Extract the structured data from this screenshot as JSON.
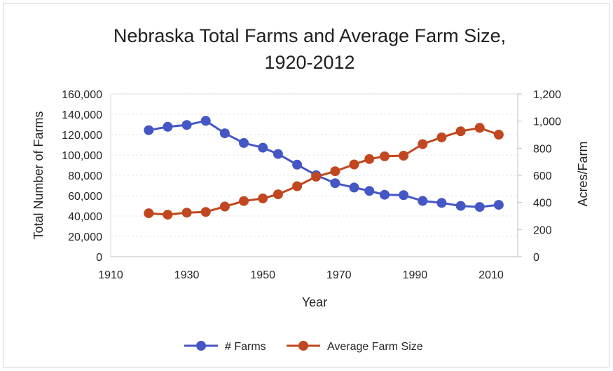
{
  "chart_data": {
    "type": "line",
    "title_line1": "Nebraska Total Farms and Average Farm Size,",
    "title_line2": "1920-2012",
    "xlabel": "Year",
    "ylabel_left": "Total Number of Farms",
    "ylabel_right": "Acres/Farm",
    "xlim": [
      1910,
      2017
    ],
    "x_ticks": [
      "1910",
      "1930",
      "1950",
      "1970",
      "1990",
      "2010"
    ],
    "ylim_left": [
      0,
      160000
    ],
    "y_ticks_left": [
      "0",
      "20,000",
      "40,000",
      "60,000",
      "80,000",
      "100,000",
      "120,000",
      "140,000",
      "160,000"
    ],
    "ylim_right": [
      0,
      1200
    ],
    "y_ticks_right": [
      "0",
      "200",
      "400",
      "600",
      "800",
      "1,000",
      "1,200"
    ],
    "legend_position": "bottom",
    "x": [
      1920,
      1925,
      1930,
      1935,
      1940,
      1945,
      1950,
      1954,
      1959,
      1964,
      1969,
      1974,
      1978,
      1982,
      1987,
      1992,
      1997,
      2002,
      2007,
      2012
    ],
    "series": [
      {
        "name": "# Farms",
        "axis": "left",
        "color": "#4457c4",
        "values": [
          124400,
          127700,
          129500,
          133600,
          121300,
          111800,
          107200,
          101000,
          90500,
          80200,
          72300,
          68000,
          64700,
          60900,
          60500,
          54800,
          52900,
          49900,
          48900,
          51000
        ]
      },
      {
        "name": "Average Farm Size",
        "axis": "right",
        "color": "#c0471f",
        "values": [
          320,
          310,
          325,
          330,
          370,
          410,
          430,
          460,
          520,
          590,
          630,
          680,
          720,
          740,
          745,
          830,
          880,
          925,
          950,
          900
        ]
      }
    ]
  }
}
